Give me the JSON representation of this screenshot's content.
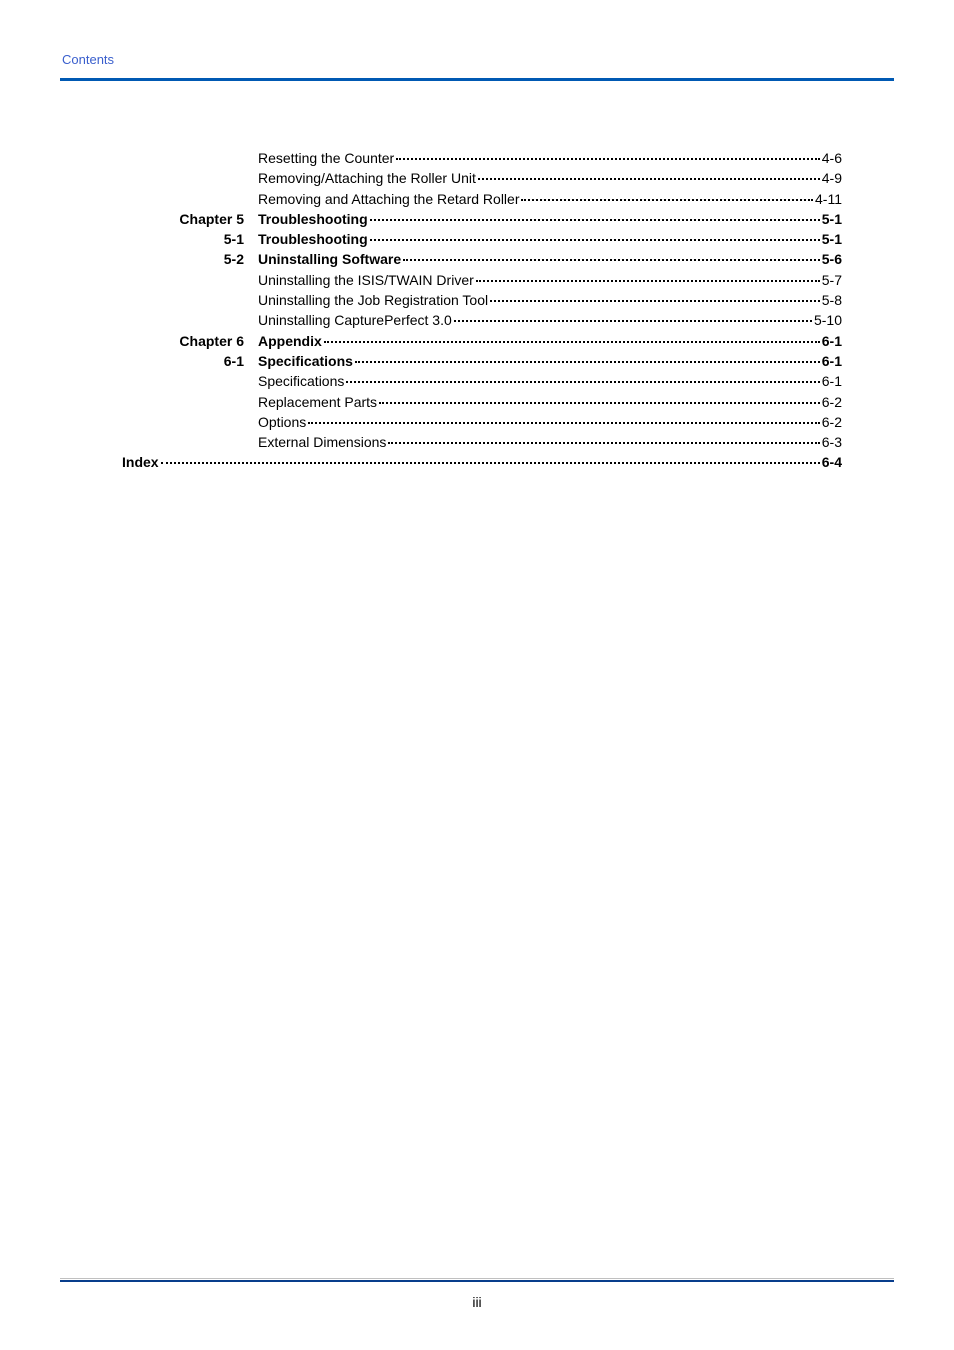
{
  "header": {
    "label": "Contents"
  },
  "toc": {
    "pre_rows": [
      {
        "label": "",
        "title": "Resetting the Counter",
        "page": "4-6",
        "bold": false
      },
      {
        "label": "",
        "title": "Removing/Attaching the Roller Unit",
        "page": "4-9",
        "bold": false
      },
      {
        "label": "",
        "title": "Removing and Attaching the Retard Roller",
        "page": "4-11",
        "bold": false
      }
    ],
    "chapter5": {
      "label": "Chapter 5",
      "title": "Troubleshooting",
      "page": "5-1"
    },
    "section51": {
      "label": "5-1",
      "title": "Troubleshooting",
      "page": "5-1"
    },
    "section52": {
      "label": "5-2",
      "title": "Uninstalling Software",
      "page": "5-6",
      "subs": [
        {
          "title": "Uninstalling the ISIS/TWAIN Driver",
          "page": "5-7"
        },
        {
          "title": "Uninstalling the Job Registration Tool",
          "page": "5-8"
        },
        {
          "title": "Uninstalling CapturePerfect 3.0",
          "page": "5-10"
        }
      ]
    },
    "chapter6": {
      "label": "Chapter 6",
      "title": "Appendix",
      "page": "6-1"
    },
    "section61": {
      "label": "6-1",
      "title": "Specifications",
      "page": "6-1",
      "subs": [
        {
          "title": "Specifications",
          "page": "6-1"
        },
        {
          "title": "Replacement Parts",
          "page": "6-2"
        },
        {
          "title": "Options",
          "page": "6-2"
        },
        {
          "title": "External Dimensions",
          "page": "6-3"
        }
      ]
    },
    "index": {
      "title": "Index",
      "page": "6-4"
    }
  },
  "footer": {
    "page_number": "iii"
  },
  "colors": {
    "header_text": "#3a5fcd",
    "top_rule": "#0059b3",
    "bottom_thin": "#083d8c",
    "bottom_thick": "#c0c0c0"
  }
}
